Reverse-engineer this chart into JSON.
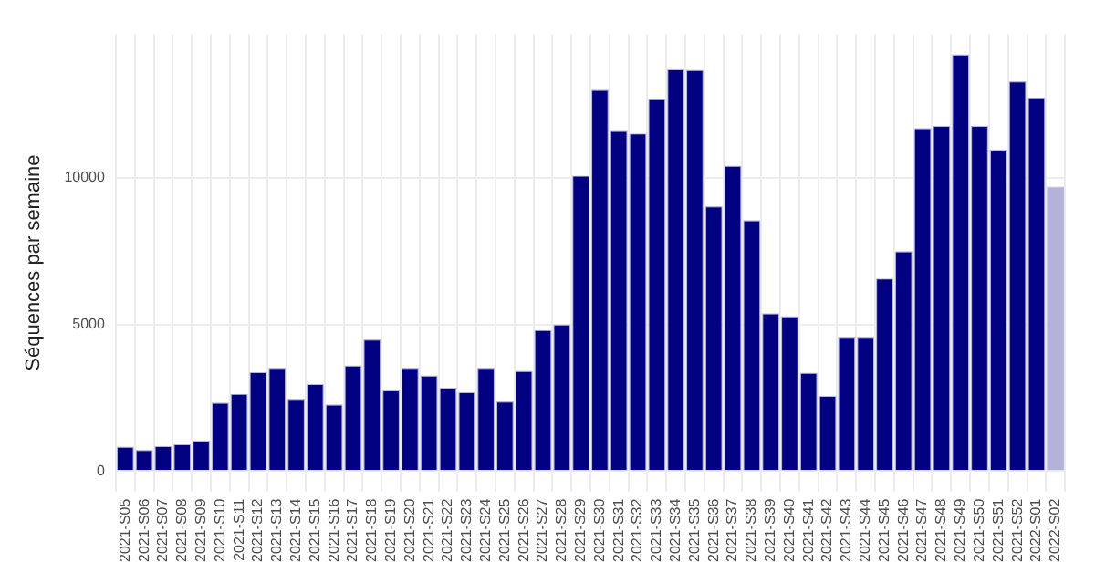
{
  "chart_data": {
    "type": "bar",
    "ylabel": "Séquences par semaine",
    "categories": [
      "2021-S05",
      "2021-S06",
      "2021-S07",
      "2021-S08",
      "2021-S09",
      "2021-S10",
      "2021-S11",
      "2021-S12",
      "2021-S13",
      "2021-S14",
      "2021-S15",
      "2021-S16",
      "2021-S17",
      "2021-S18",
      "2021-S19",
      "2021-S20",
      "2021-S21",
      "2021-S22",
      "2021-S23",
      "2021-S24",
      "2021-S25",
      "2021-S26",
      "2021-S27",
      "2021-S28",
      "2021-S29",
      "2021-S30",
      "2021-S31",
      "2021-S32",
      "2021-S33",
      "2021-S34",
      "2021-S35",
      "2021-S36",
      "2021-S37",
      "2021-S38",
      "2021-S39",
      "2021-S40",
      "2021-S41",
      "2021-S42",
      "2021-S43",
      "2021-S44",
      "2021-S45",
      "2021-S46",
      "2021-S47",
      "2021-S48",
      "2021-S49",
      "2021-S50",
      "2021-S51",
      "2021-S52",
      "2022-S01",
      "2022-S02"
    ],
    "values": [
      830,
      720,
      850,
      910,
      1040,
      2330,
      2630,
      3370,
      3520,
      2460,
      2970,
      2270,
      3600,
      4490,
      2780,
      3520,
      3260,
      2840,
      2690,
      3520,
      2370,
      3410,
      4810,
      5000,
      10080,
      13010,
      11610,
      11520,
      12690,
      13710,
      13690,
      9030,
      10420,
      8560,
      5380,
      5280,
      3350,
      2560,
      4580,
      4580,
      6570,
      7500,
      11700,
      11780,
      14220,
      11780,
      10970,
      13300,
      12750,
      9700
    ],
    "colors": [
      "#000080",
      "#000080",
      "#000080",
      "#000080",
      "#000080",
      "#000080",
      "#000080",
      "#000080",
      "#000080",
      "#000080",
      "#000080",
      "#000080",
      "#000080",
      "#000080",
      "#000080",
      "#000080",
      "#000080",
      "#000080",
      "#000080",
      "#000080",
      "#000080",
      "#000080",
      "#000080",
      "#000080",
      "#000080",
      "#000080",
      "#000080",
      "#000080",
      "#000080",
      "#000080",
      "#000080",
      "#000080",
      "#000080",
      "#000080",
      "#000080",
      "#000080",
      "#000080",
      "#000080",
      "#000080",
      "#000080",
      "#000080",
      "#000080",
      "#000080",
      "#000080",
      "#000080",
      "#000080",
      "#000080",
      "#000080",
      "#000080",
      "#b3b3d9"
    ],
    "ylim": [
      -700,
      14900
    ],
    "yticks": [
      0,
      5000,
      10000
    ],
    "grid": true
  }
}
